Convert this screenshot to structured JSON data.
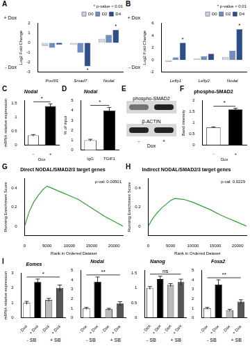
{
  "chart_data": [
    {
      "panel": "A",
      "type": "bar",
      "categories": [
        "Pou5f1",
        "Smad7",
        "Nodal"
      ],
      "series": [
        {
          "name": "D0",
          "color": "#c9d6ea",
          "values": [
            -0.3,
            -0.2,
            0.4
          ]
        },
        {
          "name": "D2",
          "color": "#6e8fc4",
          "values": [
            -0.5,
            -1.0,
            0.8
          ]
        },
        {
          "name": "D4",
          "color": "#2c4f8a",
          "values": [
            -0.2,
            -2.4,
            1.3
          ]
        }
      ],
      "ylabel": "Log2 Fold Change",
      "side_labels": [
        "+ Dox",
        "- Dox"
      ],
      "note": "* p-value < 0.01",
      "annotations": [
        {
          "category": "Smad7",
          "series": "D4",
          "text": "*"
        },
        {
          "category": "Nodal",
          "series": "D4",
          "text": "*"
        }
      ],
      "ylim": [
        -3,
        2
      ],
      "yticks": [
        -3,
        -2,
        -1,
        0,
        1,
        2
      ],
      "grid": false,
      "legend": "top-right"
    },
    {
      "panel": "B",
      "type": "bar",
      "categories": [
        "Lefty1",
        "Lefty2",
        "Nodal"
      ],
      "series": [
        {
          "name": "D0",
          "color": "#c9d6ea",
          "values": [
            -0.3,
            0.2,
            0.5
          ]
        },
        {
          "name": "D2",
          "color": "#6e8fc4",
          "values": [
            0.4,
            0.6,
            1.5
          ]
        },
        {
          "name": "D4",
          "color": "#2c4f8a",
          "values": [
            2.8,
            1.0,
            5.0
          ]
        }
      ],
      "ylabel": "Log2 Fold Change",
      "side_labels": [
        "+ Dox",
        "- Dox"
      ],
      "note": "* p-value < 0.01",
      "annotations": [
        {
          "category": "Lefty1",
          "series": "D4",
          "text": "*"
        },
        {
          "category": "Nodal",
          "series": "D4",
          "text": "*"
        }
      ],
      "ylim": [
        -2,
        6
      ],
      "yticks": [
        -2,
        0,
        2,
        4,
        6
      ],
      "grid": false,
      "legend": "top-right"
    },
    {
      "panel": "C",
      "type": "bar",
      "title": "Nodal",
      "categories": [
        "-",
        "+"
      ],
      "xlabel": "Dox",
      "ylabel": "mRNA relative expression",
      "values": [
        0.35,
        1.4
      ],
      "errors": [
        0.03,
        0.08
      ],
      "colors": [
        "#ffffff",
        "#000000"
      ],
      "annotations": [
        {
          "text": "*"
        }
      ],
      "ylim": [
        0,
        1.6
      ],
      "yticks": [
        0,
        0.5,
        1,
        1.5
      ],
      "grid": false
    },
    {
      "panel": "D",
      "type": "bar",
      "title": "Nodal",
      "categories": [
        "IgG",
        "TGIF1"
      ],
      "ylabel": "% of input",
      "values": [
        1,
        4
      ],
      "errors": [
        0.1,
        0.3
      ],
      "colors": [
        "#ffffff",
        "#000000"
      ],
      "annotations": [
        {
          "text": "*"
        }
      ],
      "ylim": [
        0,
        5
      ],
      "yticks": [
        0,
        1,
        2,
        3,
        4,
        5
      ],
      "grid": false
    },
    {
      "panel": "F",
      "type": "bar",
      "title": "phospho-SMAD2",
      "categories": [
        "-",
        "+"
      ],
      "xlabel": "Dox",
      "ylabel": "Band intensity",
      "values": [
        0.8,
        1.6
      ],
      "errors": [
        0.02,
        0.05
      ],
      "colors": [
        "#ffffff",
        "#000000"
      ],
      "annotations": [
        {
          "text": "*"
        }
      ],
      "ylim": [
        0,
        2
      ],
      "yticks": [
        0,
        0.5,
        1,
        1.5,
        2
      ],
      "grid": false
    },
    {
      "panel": "G",
      "type": "line",
      "title": "Direct NODAL/SMAD2/3 target genes",
      "annotations": [
        {
          "text": "p-val: 0.00501"
        }
      ],
      "x": [
        0,
        1000,
        2000,
        3000,
        4000,
        5000,
        6000,
        8000,
        10000,
        12000,
        14000,
        16000,
        18000,
        20000,
        22000
      ],
      "values": [
        0,
        0.15,
        0.25,
        0.32,
        0.38,
        0.42,
        0.4,
        0.36,
        0.32,
        0.28,
        0.22,
        0.16,
        0.1,
        0.05,
        0
      ],
      "color": "#2ca02c",
      "xlabel": "Rank in Ordered Dataset",
      "ylabel": "Running Enrichment Score",
      "xlim": [
        0,
        22000
      ],
      "xticks": [
        0,
        5000,
        10000,
        15000,
        20000
      ],
      "ylim": [
        -0.1,
        0.5
      ],
      "yticks": [
        0,
        0.2,
        0.4
      ],
      "grid": false
    },
    {
      "panel": "H",
      "type": "line",
      "title": "Indirect NODAL/SMAD2/3 target genes",
      "annotations": [
        {
          "text": "p-val: 0.0229"
        }
      ],
      "x": [
        0,
        1000,
        2000,
        3000,
        4000,
        5000,
        6000,
        8000,
        10000,
        12000,
        14000,
        16000,
        18000,
        20000,
        22000
      ],
      "values": [
        0,
        0.08,
        0.14,
        0.19,
        0.23,
        0.27,
        0.29,
        0.28,
        0.25,
        0.21,
        0.17,
        0.12,
        0.08,
        0.04,
        0
      ],
      "color": "#2ca02c",
      "xlabel": "Rank in Ordered Dataset",
      "ylabel": "Running Enrichment Score",
      "xlim": [
        0,
        22000
      ],
      "xticks": [
        0,
        5000,
        10000,
        15000,
        20000
      ],
      "ylim": [
        -0.1,
        0.5
      ],
      "yticks": [
        0,
        0.2,
        0.4
      ],
      "grid": false
    },
    {
      "panel": "I",
      "type": "bar",
      "title": "Eomes",
      "categories": [
        "- Dox",
        "+ Dox",
        "- Dox",
        "+ Dox"
      ],
      "groups": [
        "- SB",
        "+ SB"
      ],
      "ylabel": "mRNA relative expression",
      "values": [
        1,
        2.4,
        1.2,
        2.0
      ],
      "errors": [
        0.1,
        0.2,
        0.1,
        0.2
      ],
      "colors": [
        "#ffffff",
        "#000000",
        "#bbbbbb",
        "#555555"
      ],
      "annotations": [
        {
          "text": "*"
        }
      ],
      "ylim": [
        0,
        3
      ],
      "yticks": [
        0,
        1,
        2,
        3
      ],
      "grid": false
    },
    {
      "type": "bar",
      "title": "Nodal",
      "categories": [
        "- Dox",
        "+ Dox",
        "- Dox",
        "+ Dox"
      ],
      "groups": [
        "- SB",
        "+ SB"
      ],
      "values": [
        1,
        3.8,
        0.9,
        1.5
      ],
      "errors": [
        0.1,
        0.5,
        0.1,
        0.2
      ],
      "colors": [
        "#ffffff",
        "#000000",
        "#bbbbbb",
        "#555555"
      ],
      "annotations": [
        {
          "text": "**"
        }
      ],
      "ylim": [
        0,
        5
      ],
      "yticks": [
        0,
        1,
        2,
        3,
        4,
        5
      ],
      "grid": false
    },
    {
      "type": "bar",
      "title": "Nanog",
      "categories": [
        "- Dox",
        "+ Dox",
        "- Dox",
        "+ Dox"
      ],
      "groups": [
        "- SB",
        "+ SB"
      ],
      "values": [
        1,
        1.3,
        1.1,
        1.2
      ],
      "errors": [
        0.05,
        0.1,
        0.05,
        0.1
      ],
      "colors": [
        "#ffffff",
        "#000000",
        "#bbbbbb",
        "#555555"
      ],
      "annotations": [
        {
          "text": "ns"
        }
      ],
      "ylim": [
        0,
        1.6
      ],
      "yticks": [
        0,
        0.5,
        1,
        1.5
      ],
      "grid": false
    },
    {
      "type": "bar",
      "title": "Foxa2",
      "categories": [
        "- Dox",
        "+ Dox",
        "- Dox",
        "+ Dox"
      ],
      "groups": [
        "- SB",
        "+ SB"
      ],
      "values": [
        1,
        3.5,
        0.8,
        1.7
      ],
      "errors": [
        0.1,
        0.5,
        0.1,
        0.2
      ],
      "colors": [
        "#ffffff",
        "#000000",
        "#bbbbbb",
        "#555555"
      ],
      "annotations": [
        {
          "text": "**"
        }
      ],
      "ylim": [
        0,
        5
      ],
      "yticks": [
        0,
        1,
        2,
        3,
        4,
        5
      ],
      "grid": false
    }
  ],
  "blot": {
    "panel": "E",
    "rows": [
      "phospho-SMAD2",
      "β-ACTIN"
    ],
    "lanes": [
      "-",
      "+"
    ],
    "xlabel": "Dox"
  }
}
